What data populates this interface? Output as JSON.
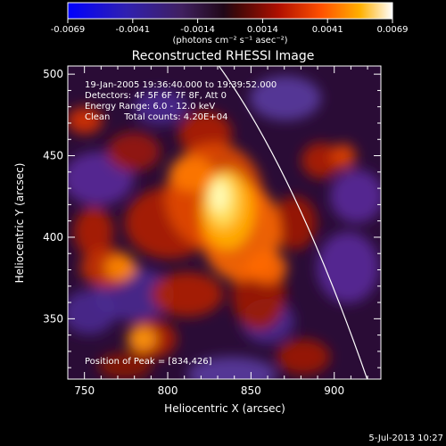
{
  "colorbar": {
    "ticks": [
      "-0.0069",
      "-0.0041",
      "-0.0014",
      "0.0014",
      "0.0041",
      "0.0069"
    ],
    "units_label": "(photons cm⁻² s⁻¹ asec⁻²)",
    "range": [
      -0.0069,
      0.0069
    ]
  },
  "image": {
    "title": "Reconstructed RHESSI Image",
    "info_lines": [
      "19-Jan-2005 19:36:40.000 to 19:39:52.000",
      "Detectors: 4F 5F 6F 7F 8F, Att 0",
      "Energy Range: 6.0 - 12.0 keV",
      "Clean     Total counts: 4.20E+04"
    ],
    "peak_text": "Position of Peak = [834,426]",
    "peak": {
      "x": 834,
      "y": 426
    },
    "x_axis": {
      "label": "Heliocentric X (arcsec)",
      "ticks": [
        "750",
        "800",
        "850",
        "900"
      ],
      "range": [
        740,
        928
      ]
    },
    "y_axis": {
      "label": "Heliocentric Y (arcsec)",
      "ticks": [
        "350",
        "400",
        "450",
        "500"
      ],
      "range": [
        313,
        505
      ]
    }
  },
  "footer": {
    "date": "5-Jul-2013 10:27"
  },
  "palette": {
    "negative": [
      "#0000ff",
      "#3a1f9c",
      "#4a2a6e"
    ],
    "positive": [
      "#7a1408",
      "#b01a00",
      "#e03800",
      "#ff7a00",
      "#ffc000",
      "#ffffd0"
    ]
  }
}
